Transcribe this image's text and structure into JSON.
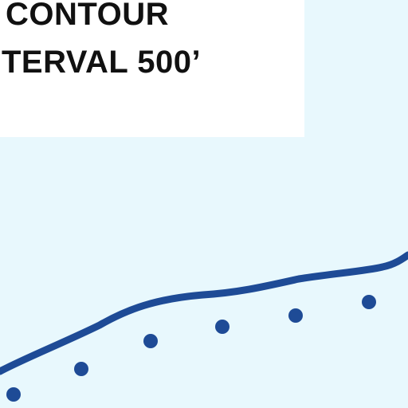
{
  "legend": {
    "line1": "CONTOUR",
    "line2": "TERVAL 500’"
  },
  "colors": {
    "water": "#e8f8fd",
    "label_background": "#ffffff",
    "contour": "#1e4b96",
    "text": "#111111"
  },
  "features": {
    "contour_line": "solid contour line",
    "dotted_line": "dotted line"
  }
}
